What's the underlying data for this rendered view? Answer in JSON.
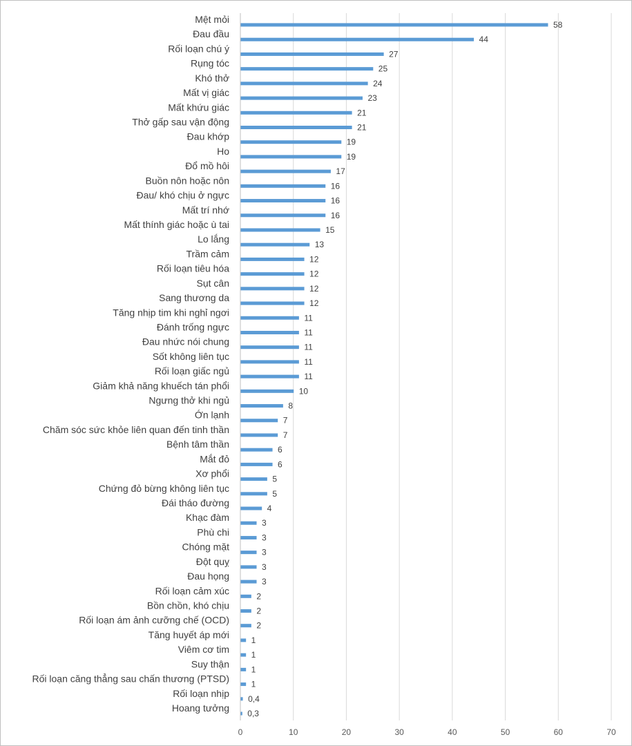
{
  "chart_data": {
    "type": "bar",
    "orientation": "horizontal",
    "title": "",
    "xlabel": "",
    "ylabel": "",
    "xlim": [
      0,
      70
    ],
    "x_ticks": [
      0,
      10,
      20,
      30,
      40,
      50,
      60,
      70
    ],
    "grid": "vertical",
    "bar_color": "#5B9BD5",
    "legend": "none",
    "categories": [
      "Mệt mỏi",
      "Đau đầu",
      "Rối loạn chú ý",
      "Rụng tóc",
      "Khó thở",
      "Mất vị giác",
      "Mất khứu giác",
      "Thở gấp sau vận động",
      "Đau khớp",
      "Ho",
      "Đổ mồ hôi",
      "Buồn nôn hoặc nôn",
      "Đau/ khó chịu ở ngực",
      "Mất trí nhớ",
      "Mất thính giác hoặc ù tai",
      "Lo lắng",
      "Trầm cảm",
      "Rối loạn tiêu hóa",
      "Sụt cân",
      "Sang thương da",
      "Tăng nhịp tim khi nghỉ ngơi",
      "Đánh trống ngực",
      "Đau nhức nói chung",
      "Sốt không liên tục",
      "Rối loạn giấc ngủ",
      "Giảm khả năng khuếch tán phổi",
      "Ngưng thở khi ngủ",
      "Ớn lạnh",
      "Chăm sóc sức khỏe liên quan đến tinh thần",
      "Bệnh tâm thần",
      "Mắt đỏ",
      "Xơ phổi",
      "Chứng đỏ bừng không liên tục",
      "Đái tháo đường",
      "Khạc đàm",
      "Phù chi",
      "Chóng mặt",
      "Đột quỵ",
      "Đau họng",
      "Rối loạn cảm xúc",
      "Bồn chồn, khó chịu",
      "Rối loạn ám ảnh cưỡng chế (OCD)",
      "Tăng huyết áp mới",
      "Viêm cơ tim",
      "Suy thận",
      "Rối loạn căng thẳng sau chấn thương (PTSD)",
      "Rối loạn nhịp",
      "Hoang tưởng"
    ],
    "values": [
      58,
      44,
      27,
      25,
      24,
      23,
      21,
      21,
      19,
      19,
      17,
      16,
      16,
      16,
      15,
      13,
      12,
      12,
      12,
      12,
      11,
      11,
      11,
      11,
      11,
      10,
      8,
      7,
      7,
      6,
      6,
      5,
      5,
      4,
      3,
      3,
      3,
      3,
      3,
      2,
      2,
      2,
      1,
      1,
      1,
      1,
      0.4,
      0.3
    ],
    "value_labels": [
      "58",
      "44",
      "27",
      "25",
      "24",
      "23",
      "21",
      "21",
      "19",
      "19",
      "17",
      "16",
      "16",
      "16",
      "15",
      "13",
      "12",
      "12",
      "12",
      "12",
      "11",
      "11",
      "11",
      "11",
      "11",
      "10",
      "8",
      "7",
      "7",
      "6",
      "6",
      "5",
      "5",
      "4",
      "3",
      "3",
      "3",
      "3",
      "3",
      "2",
      "2",
      "2",
      "1",
      "1",
      "1",
      "1",
      "0,4",
      "0,3"
    ]
  }
}
